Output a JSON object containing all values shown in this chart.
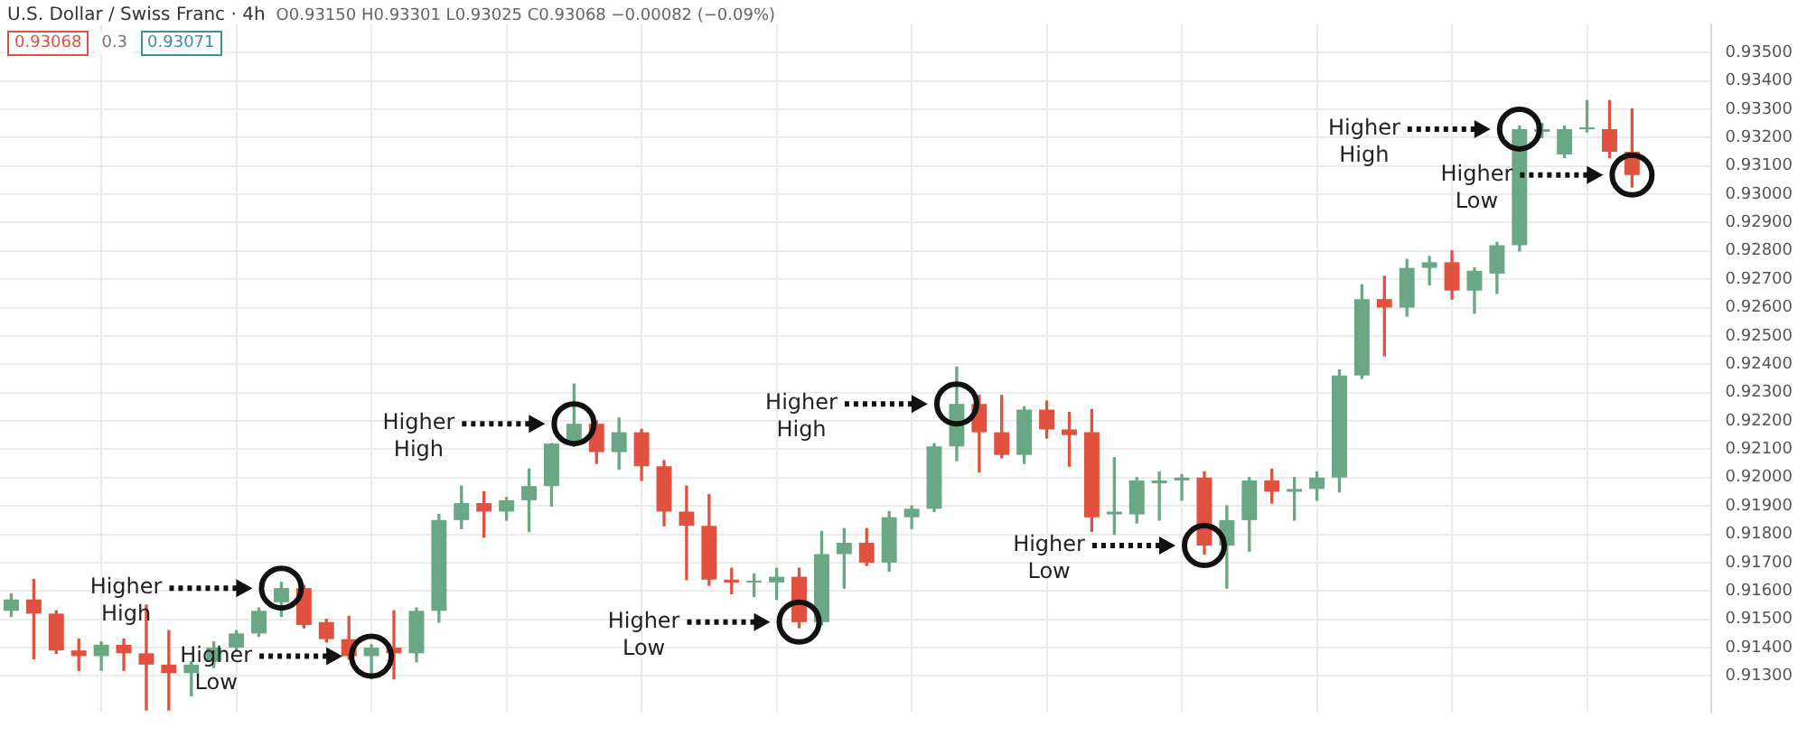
{
  "chart_data": {
    "type": "candlestick",
    "title": "U.S. Dollar / Swiss Franc · 4h",
    "subtitle": "O0.93150 H0.93301 L0.93025 C0.93068 −0.00082 (−0.09%)",
    "categories": [
      null,
      null,
      null,
      null,
      null,
      null,
      null,
      null,
      null,
      null,
      null,
      null,
      null,
      null,
      null,
      null,
      null,
      null,
      null,
      null,
      null,
      null,
      null,
      null,
      null,
      null,
      null,
      null,
      null,
      null,
      null,
      null,
      null,
      null,
      null,
      null,
      null,
      null,
      null,
      null,
      null,
      null,
      null,
      null,
      null,
      null,
      null,
      null,
      null,
      null,
      null,
      null,
      null,
      null,
      null,
      null,
      null,
      null,
      null,
      null,
      null,
      null,
      null,
      null,
      null,
      null,
      null,
      null,
      null,
      null,
      null,
      null,
      null,
      null,
      null,
      null
    ],
    "ohlc": [
      [
        0.9153,
        0.9159,
        0.9151,
        0.9157
      ],
      [
        0.9157,
        0.9164,
        0.9136,
        0.9152
      ],
      [
        0.9152,
        0.9153,
        0.9138,
        0.9139
      ],
      [
        0.9139,
        0.9143,
        0.9132,
        0.9137
      ],
      [
        0.9137,
        0.9142,
        0.9132,
        0.9141
      ],
      [
        0.9141,
        0.9143,
        0.9132,
        0.9138
      ],
      [
        0.9138,
        0.9155,
        0.9118,
        0.9134
      ],
      [
        0.9134,
        0.9146,
        0.9118,
        0.9131
      ],
      [
        0.9131,
        0.9135,
        0.9123,
        0.9134
      ],
      [
        0.9135,
        0.9142,
        0.9133,
        0.914
      ],
      [
        0.914,
        0.9146,
        0.9139,
        0.9145
      ],
      [
        0.9145,
        0.9154,
        0.9144,
        0.9153
      ],
      [
        0.9156,
        0.9163,
        0.9151,
        0.9161
      ],
      [
        0.9161,
        0.9162,
        0.9147,
        0.9148
      ],
      [
        0.9149,
        0.915,
        0.9142,
        0.9143
      ],
      [
        0.9143,
        0.9151,
        0.9136,
        0.9137
      ],
      [
        0.9137,
        0.9141,
        0.9129,
        0.914
      ],
      [
        0.914,
        0.9153,
        0.9129,
        0.9138
      ],
      [
        0.9138,
        0.9154,
        0.9135,
        0.9153
      ],
      [
        0.9153,
        0.9187,
        0.9149,
        0.9185
      ],
      [
        0.9185,
        0.9197,
        0.9182,
        0.9191
      ],
      [
        0.9191,
        0.9195,
        0.9179,
        0.9188
      ],
      [
        0.9188,
        0.9193,
        0.9185,
        0.9192
      ],
      [
        0.9192,
        0.9203,
        0.9181,
        0.9197
      ],
      [
        0.9197,
        0.9212,
        0.919,
        0.9212
      ],
      [
        0.9212,
        0.9233,
        0.9211,
        0.9219
      ],
      [
        0.9219,
        0.922,
        0.9205,
        0.9209
      ],
      [
        0.9209,
        0.9221,
        0.9203,
        0.9216
      ],
      [
        0.9216,
        0.9217,
        0.9199,
        0.9204
      ],
      [
        0.9204,
        0.9206,
        0.9183,
        0.9188
      ],
      [
        0.9188,
        0.9197,
        0.9164,
        0.9183
      ],
      [
        0.9183,
        0.9194,
        0.9162,
        0.9164
      ],
      [
        0.9164,
        0.9168,
        0.9159,
        0.9163
      ],
      [
        0.9163,
        0.9166,
        0.9158,
        0.9163
      ],
      [
        0.9163,
        0.9168,
        0.9157,
        0.9165
      ],
      [
        0.9165,
        0.9168,
        0.9147,
        0.9149
      ],
      [
        0.9149,
        0.9181,
        0.9148,
        0.9173
      ],
      [
        0.9173,
        0.9182,
        0.9161,
        0.9177
      ],
      [
        0.9177,
        0.9182,
        0.9169,
        0.917
      ],
      [
        0.917,
        0.9188,
        0.9167,
        0.9186
      ],
      [
        0.9186,
        0.919,
        0.9182,
        0.9189
      ],
      [
        0.9189,
        0.9212,
        0.9188,
        0.9211
      ],
      [
        0.9211,
        0.9239,
        0.9206,
        0.9226
      ],
      [
        0.9226,
        0.9229,
        0.9202,
        0.9216
      ],
      [
        0.9216,
        0.9229,
        0.9207,
        0.9208
      ],
      [
        0.9208,
        0.9225,
        0.9205,
        0.9224
      ],
      [
        0.9224,
        0.9227,
        0.9214,
        0.9217
      ],
      [
        0.9217,
        0.9223,
        0.9204,
        0.9215
      ],
      [
        0.9216,
        0.9224,
        0.9181,
        0.9186
      ],
      [
        0.9187,
        0.9207,
        0.918,
        0.9188
      ],
      [
        0.9187,
        0.92,
        0.9184,
        0.9199
      ],
      [
        0.9198,
        0.9202,
        0.9185,
        0.9199
      ],
      [
        0.9199,
        0.9201,
        0.9192,
        0.92
      ],
      [
        0.92,
        0.9202,
        0.9173,
        0.9176
      ],
      [
        0.9176,
        0.919,
        0.9161,
        0.9185
      ],
      [
        0.9185,
        0.92,
        0.9174,
        0.9199
      ],
      [
        0.9199,
        0.9203,
        0.9191,
        0.9195
      ],
      [
        0.9195,
        0.92,
        0.9185,
        0.9196
      ],
      [
        0.9196,
        0.9202,
        0.9192,
        0.92
      ],
      [
        0.92,
        0.9238,
        0.9195,
        0.9236
      ],
      [
        0.9236,
        0.9268,
        0.9235,
        0.9263
      ],
      [
        0.9263,
        0.9271,
        0.9243,
        0.926
      ],
      [
        0.926,
        0.9277,
        0.9257,
        0.9274
      ],
      [
        0.9274,
        0.9278,
        0.9268,
        0.9276
      ],
      [
        0.9276,
        0.928,
        0.9263,
        0.9266
      ],
      [
        0.9266,
        0.9274,
        0.9258,
        0.9273
      ],
      [
        0.9272,
        0.9283,
        0.9265,
        0.9282
      ],
      [
        0.9282,
        0.9324,
        0.928,
        0.9323
      ],
      [
        0.9322,
        0.9325,
        0.932,
        0.9323
      ],
      [
        0.9314,
        0.9324,
        0.9313,
        0.9323
      ],
      [
        0.9323,
        0.9333,
        0.9322,
        0.9323
      ],
      [
        0.9323,
        0.9333,
        0.9313,
        0.9315
      ],
      [
        0.9315,
        0.93301,
        0.93025,
        0.93068
      ],
      null,
      null,
      null
    ],
    "colors": [
      "#6aa784",
      "#e0513f",
      "#e0513f",
      "#e0513f",
      "#6aa784",
      "#e0513f",
      "#e0513f",
      "#e0513f",
      "#6aa784",
      "#6aa784",
      "#6aa784",
      "#6aa784",
      "#6aa784",
      "#e0513f",
      "#e0513f",
      "#e0513f",
      "#6aa784",
      "#e0513f",
      "#6aa784",
      "#6aa784",
      "#6aa784",
      "#e0513f",
      "#6aa784",
      "#6aa784",
      "#6aa784",
      "#6aa784",
      "#e0513f",
      "#6aa784",
      "#e0513f",
      "#e0513f",
      "#e0513f",
      "#e0513f",
      "#e0513f",
      "#6aa784",
      "#6aa784",
      "#e0513f",
      "#6aa784",
      "#6aa784",
      "#e0513f",
      "#6aa784",
      "#6aa784",
      "#6aa784",
      "#6aa784",
      "#e0513f",
      "#e0513f",
      "#6aa784",
      "#e0513f",
      "#e0513f",
      "#e0513f",
      "#6aa784",
      "#6aa784",
      "#6aa784",
      "#6aa784",
      "#e0513f",
      "#6aa784",
      "#6aa784",
      "#e0513f",
      "#6aa784",
      "#6aa784",
      "#6aa784",
      "#6aa784",
      "#e0513f",
      "#6aa784",
      "#6aa784",
      "#e0513f",
      "#6aa784",
      "#6aa784",
      "#6aa784",
      "#6aa784",
      "#6aa784",
      "#6aa784",
      "#e0513f",
      "#e0513f",
      null,
      null,
      null
    ],
    "ylim": [
      0.9117,
      0.936
    ],
    "yticks": [
      {
        "value": 0.913,
        "label": "0.91300"
      },
      {
        "value": 0.914,
        "label": "0.91400"
      },
      {
        "value": 0.915,
        "label": "0.91500"
      },
      {
        "value": 0.916,
        "label": "0.91600"
      },
      {
        "value": 0.917,
        "label": "0.91700"
      },
      {
        "value": 0.918,
        "label": "0.91800"
      },
      {
        "value": 0.919,
        "label": "0.91900"
      },
      {
        "value": 0.92,
        "label": "0.92000"
      },
      {
        "value": 0.921,
        "label": "0.92100"
      },
      {
        "value": 0.922,
        "label": "0.92200"
      },
      {
        "value": 0.923,
        "label": "0.92300"
      },
      {
        "value": 0.924,
        "label": "0.92400"
      },
      {
        "value": 0.925,
        "label": "0.92500"
      },
      {
        "value": 0.926,
        "label": "0.92600"
      },
      {
        "value": 0.927,
        "label": "0.92700"
      },
      {
        "value": 0.928,
        "label": "0.92800"
      },
      {
        "value": 0.929,
        "label": "0.92900"
      },
      {
        "value": 0.93,
        "label": "0.93000"
      },
      {
        "value": 0.931,
        "label": "0.93100"
      },
      {
        "value": 0.932,
        "label": "0.93200"
      },
      {
        "value": 0.933,
        "label": "0.93300"
      },
      {
        "value": 0.934,
        "label": "0.93400"
      },
      {
        "value": 0.935,
        "label": "0.93500"
      }
    ],
    "grid": true,
    "tick_labels": "y",
    "annotations": [
      "0.93068",
      "0.3",
      "0.93071",
      "Higher High",
      "Higher Low",
      "Higher High",
      "Higher Low",
      "Higher High",
      "Higher Low",
      "Higher High",
      "Higher Low"
    ]
  }
}
